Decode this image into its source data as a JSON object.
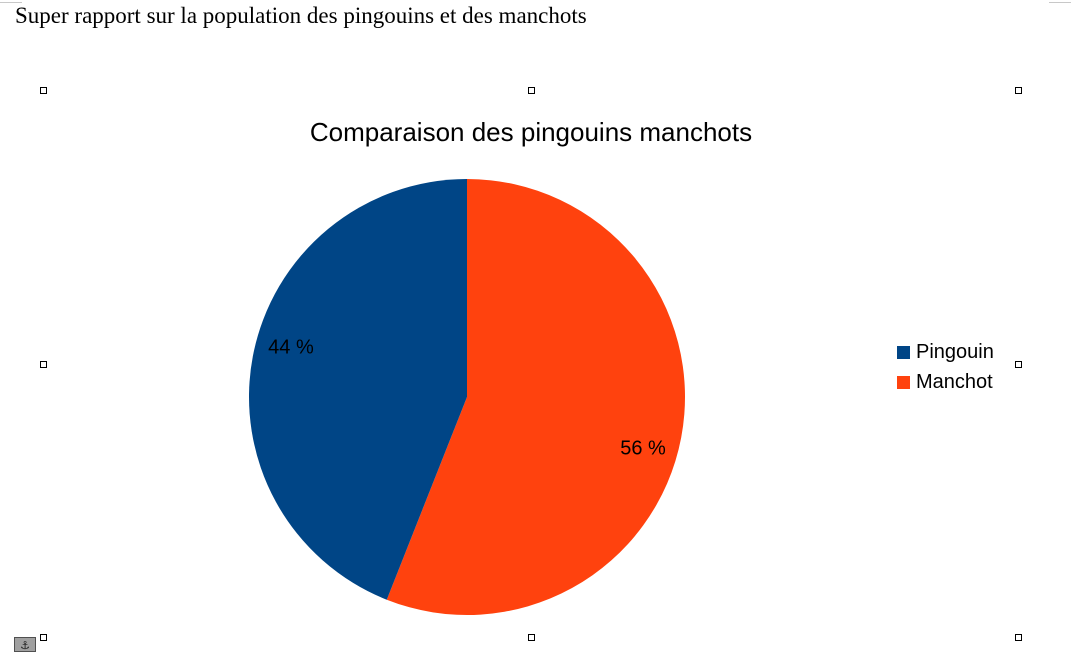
{
  "document": {
    "title": "Super rapport sur la population des pingouins et des manchots"
  },
  "chart_data": {
    "type": "pie",
    "title": "Comparaison des pingouins manchots",
    "categories": [
      "Pingouin",
      "Manchot"
    ],
    "values": [
      44,
      56
    ],
    "labels": [
      "44 %",
      "56 %"
    ],
    "colors": [
      "#004586",
      "#ff420e"
    ],
    "legend_position": "right",
    "start_angle_deg": 0
  },
  "icons": {
    "anchor": "anchor-icon"
  }
}
